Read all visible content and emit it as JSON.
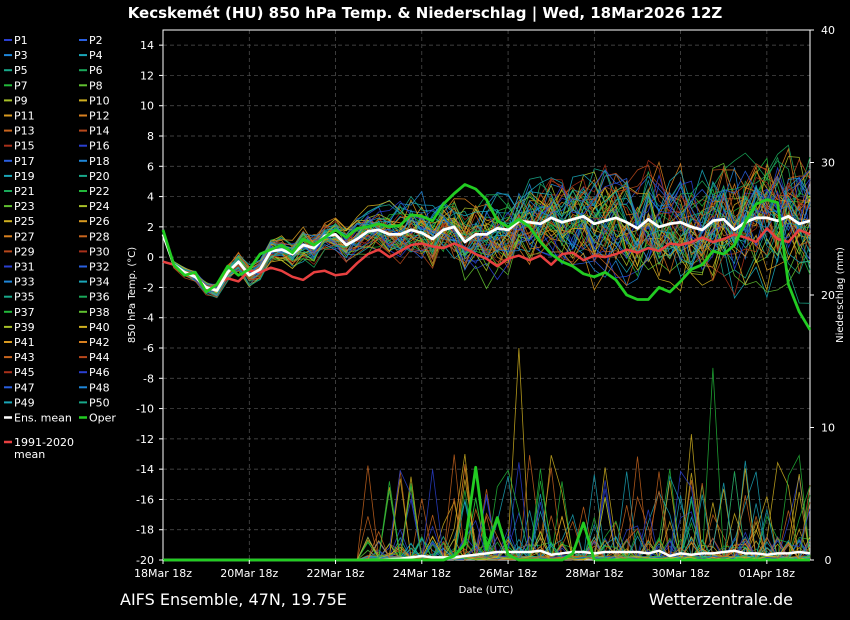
{
  "page": {
    "title": "Kecskemét  (HU)  850 hPa Temp. & Niederschlag | Wed, 18Mar2026 12Z",
    "footer_left": "AIFS Ensemble, 47N, 19.75E",
    "footer_right": "Wetterzentrale.de"
  },
  "chart_data": {
    "type": "line",
    "title": "Kecskemét  (HU)  850 hPa Temp. & Niederschlag | Wed, 18Mar2026 12Z",
    "xlabel": "Date (UTC)",
    "ylabel": "850 hPa Temp. (°C)",
    "y2label": "Niederschlag (mm)",
    "ylim": [
      -20,
      15
    ],
    "y2lim": [
      0,
      40
    ],
    "yticks": [
      -20,
      -18,
      -16,
      -14,
      -12,
      -10,
      -8,
      -6,
      -4,
      -2,
      0,
      2,
      4,
      6,
      8,
      10,
      12,
      14
    ],
    "y2ticks": [
      0,
      10,
      20,
      30,
      40
    ],
    "xlim_hours": [
      0,
      360
    ],
    "xticks": [
      {
        "h": 0,
        "label": "18Mar 18z"
      },
      {
        "h": 48,
        "label": "20Mar 18z"
      },
      {
        "h": 96,
        "label": "22Mar 18z"
      },
      {
        "h": 144,
        "label": "24Mar 18z"
      },
      {
        "h": 192,
        "label": "26Mar 18z"
      },
      {
        "h": 240,
        "label": "28Mar 18z"
      },
      {
        "h": 288,
        "label": "30Mar 18z"
      },
      {
        "h": 336,
        "label": "01Apr 18z"
      }
    ],
    "grid": true,
    "legend_position": "left",
    "member_colors": [
      "#2a3fd0",
      "#2a5fe0",
      "#1f86d8",
      "#1aa6b8",
      "#18a88a",
      "#1aa85a",
      "#22b83a",
      "#60c030",
      "#a8c028",
      "#d0b020",
      "#d89a20",
      "#d8801f",
      "#c8651e",
      "#b8481c",
      "#a8301a"
    ],
    "members": [
      "P1",
      "P2",
      "P3",
      "P4",
      "P5",
      "P6",
      "P7",
      "P8",
      "P9",
      "P10",
      "P11",
      "P12",
      "P13",
      "P14",
      "P15",
      "P16",
      "P17",
      "P18",
      "P19",
      "P20",
      "P21",
      "P22",
      "P23",
      "P24",
      "P25",
      "P26",
      "P27",
      "P28",
      "P29",
      "P30",
      "P31",
      "P32",
      "P33",
      "P34",
      "P35",
      "P36",
      "P37",
      "P38",
      "P39",
      "P40",
      "P41",
      "P42",
      "P43",
      "P44",
      "P45",
      "P46",
      "P47",
      "P48",
      "P49",
      "P50"
    ],
    "ens_mean_label": "Ens. mean",
    "oper_label": "Oper",
    "clim_label_line1": "1991-2020",
    "clim_label_line2": "mean",
    "ens_mean_color": "#ffffff",
    "oper_color": "#22cc22",
    "clim_color": "#e84040",
    "ens_mean_temp": {
      "x": [
        0,
        6,
        12,
        18,
        24,
        30,
        36,
        42,
        48,
        54,
        60,
        66,
        72,
        78,
        84,
        90,
        96,
        102,
        108,
        114,
        120,
        126,
        132,
        138,
        144,
        150,
        156,
        162,
        168,
        174,
        180,
        186,
        192,
        198,
        204,
        210,
        216,
        222,
        228,
        234,
        240,
        246,
        252,
        258,
        264,
        270,
        276,
        282,
        288,
        294,
        300,
        306,
        312,
        318,
        324,
        330,
        336,
        342,
        348,
        354,
        360
      ],
      "y": [
        1.5,
        -0.5,
        -1.0,
        -1.3,
        -2.0,
        -2.2,
        -1.0,
        -0.3,
        -1.2,
        -0.8,
        0.4,
        0.5,
        0.2,
        0.8,
        0.6,
        1.4,
        1.5,
        0.8,
        1.2,
        1.7,
        1.8,
        1.5,
        1.5,
        1.8,
        1.6,
        1.2,
        1.8,
        2.0,
        1.0,
        1.5,
        1.5,
        1.9,
        1.8,
        2.4,
        2.3,
        2.2,
        2.6,
        2.3,
        2.5,
        2.7,
        2.2,
        2.4,
        2.6,
        2.3,
        1.9,
        2.5,
        2.0,
        2.2,
        2.3,
        2.0,
        1.8,
        2.4,
        2.5,
        1.8,
        2.3,
        2.6,
        2.6,
        2.4,
        2.7,
        2.2,
        2.4
      ]
    },
    "oper_temp": {
      "x": [
        0,
        6,
        12,
        18,
        24,
        30,
        36,
        42,
        48,
        54,
        60,
        66,
        72,
        78,
        84,
        90,
        96,
        102,
        108,
        114,
        120,
        126,
        132,
        138,
        144,
        150,
        156,
        162,
        168,
        174,
        180,
        186,
        192,
        198,
        204,
        210,
        216,
        222,
        228,
        234,
        240,
        246,
        252,
        258,
        264,
        270,
        276,
        282,
        288,
        294,
        300,
        306,
        312,
        318,
        324,
        330,
        336,
        342,
        348,
        354,
        360
      ],
      "y": [
        1.8,
        -0.5,
        -1.2,
        -1.0,
        -2.3,
        -1.8,
        -0.6,
        -1.2,
        -0.8,
        0.2,
        0.5,
        0.8,
        0.3,
        1.2,
        0.8,
        1.3,
        1.8,
        1.3,
        1.9,
        2.0,
        2.2,
        2.0,
        2.1,
        2.8,
        2.7,
        2.4,
        3.5,
        4.2,
        4.8,
        4.5,
        3.8,
        2.4,
        2.0,
        2.5,
        2.0,
        1.0,
        0.2,
        -0.3,
        -0.6,
        -1.1,
        -1.3,
        -1.0,
        -1.5,
        -2.5,
        -2.8,
        -2.8,
        -2.0,
        -2.3,
        -1.6,
        -0.8,
        -0.5,
        0.4,
        0.2,
        0.8,
        2.3,
        3.5,
        3.8,
        3.6,
        -1.8,
        -3.6,
        -4.8
      ]
    },
    "climatology_temp": {
      "x": [
        0,
        6,
        12,
        18,
        24,
        30,
        36,
        42,
        48,
        54,
        60,
        66,
        72,
        78,
        84,
        90,
        96,
        102,
        108,
        114,
        120,
        126,
        132,
        138,
        144,
        150,
        156,
        162,
        168,
        174,
        180,
        186,
        192,
        198,
        204,
        210,
        216,
        222,
        228,
        234,
        240,
        246,
        252,
        258,
        264,
        270,
        276,
        282,
        288,
        294,
        300,
        306,
        312,
        318,
        324,
        330,
        336,
        342,
        348,
        354,
        360
      ],
      "y": [
        -0.3,
        -0.5,
        -1.0,
        -1.1,
        -2.1,
        -1.8,
        -1.4,
        -1.6,
        -0.9,
        -1.0,
        -0.7,
        -0.9,
        -1.3,
        -1.5,
        -1.0,
        -0.9,
        -1.2,
        -1.1,
        -0.4,
        0.2,
        0.5,
        0.0,
        0.4,
        0.8,
        0.9,
        0.7,
        0.6,
        0.9,
        0.6,
        0.2,
        -0.1,
        -0.6,
        -0.1,
        0.1,
        -0.2,
        0.1,
        -0.5,
        0.2,
        0.3,
        -0.2,
        0.1,
        0.0,
        0.2,
        0.5,
        0.3,
        0.6,
        0.4,
        0.9,
        0.8,
        1.0,
        1.3,
        1.0,
        1.2,
        1.5,
        1.3,
        1.0,
        1.9,
        1.2,
        1.0,
        1.8,
        1.5
      ]
    },
    "ens_mean_precip": {
      "x": [
        0,
        12,
        24,
        36,
        48,
        60,
        72,
        84,
        96,
        108,
        120,
        132,
        138,
        144,
        150,
        156,
        162,
        168,
        174,
        180,
        186,
        192,
        198,
        204,
        210,
        216,
        222,
        228,
        234,
        240,
        246,
        252,
        258,
        264,
        270,
        276,
        282,
        288,
        294,
        300,
        306,
        312,
        318,
        324,
        330,
        336,
        342,
        348,
        354,
        360
      ],
      "y": [
        0,
        0,
        0,
        0,
        0,
        0,
        0,
        0,
        0,
        0,
        0,
        0.1,
        0.2,
        0.3,
        0.2,
        0.2,
        0.2,
        0.3,
        0.4,
        0.5,
        0.6,
        0.6,
        0.6,
        0.6,
        0.7,
        0.4,
        0.5,
        0.6,
        0.6,
        0.5,
        0.6,
        0.6,
        0.6,
        0.6,
        0.5,
        0.7,
        0.3,
        0.5,
        0.4,
        0.5,
        0.5,
        0.6,
        0.7,
        0.5,
        0.5,
        0.4,
        0.5,
        0.5,
        0.6,
        0.5
      ]
    },
    "oper_precip": {
      "x": [
        0,
        12,
        24,
        36,
        48,
        60,
        72,
        84,
        96,
        108,
        120,
        132,
        144,
        150,
        156,
        162,
        168,
        174,
        180,
        186,
        192,
        198,
        204,
        210,
        216,
        222,
        228,
        234,
        240,
        246,
        252,
        258,
        264,
        270,
        276,
        282,
        288,
        294,
        300,
        306,
        312,
        318,
        324,
        330,
        336,
        342,
        348,
        354,
        360
      ],
      "y": [
        0,
        0,
        0,
        0,
        0,
        0,
        0,
        0,
        0,
        0,
        0,
        0,
        0,
        0,
        0,
        0.3,
        1.2,
        7.0,
        0.8,
        3.2,
        0.4,
        0,
        0,
        0,
        0,
        0,
        0.5,
        2.8,
        0,
        0,
        0,
        0,
        0,
        0,
        0,
        0,
        0,
        0,
        0,
        0,
        0,
        0,
        0,
        0,
        0,
        0,
        0,
        0,
        0
      ]
    }
  }
}
